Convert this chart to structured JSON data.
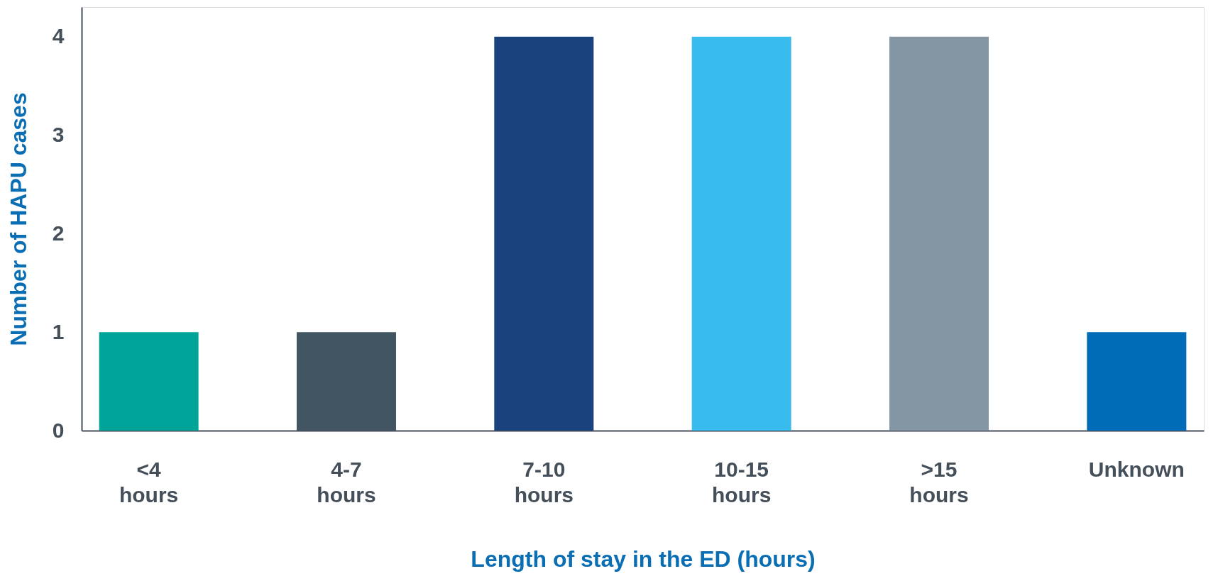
{
  "chart_data": {
    "type": "bar",
    "xlabel": "Length of stay in the ED (hours)",
    "ylabel": "Number of HAPU cases",
    "categories": [
      "<4 hours",
      "4-7 hours",
      "7-10 hours",
      "10-15 hours",
      ">15 hours",
      "Unknown"
    ],
    "values": [
      1,
      1,
      4,
      4,
      4,
      1
    ],
    "colors": [
      "#00a499",
      "#425563",
      "#1a427d",
      "#38bcee",
      "#8496a3",
      "#006bb6"
    ],
    "ylim": [
      0,
      4.3
    ],
    "yticks": [
      0,
      1,
      2,
      3,
      4
    ],
    "grid": false,
    "legend": false
  }
}
